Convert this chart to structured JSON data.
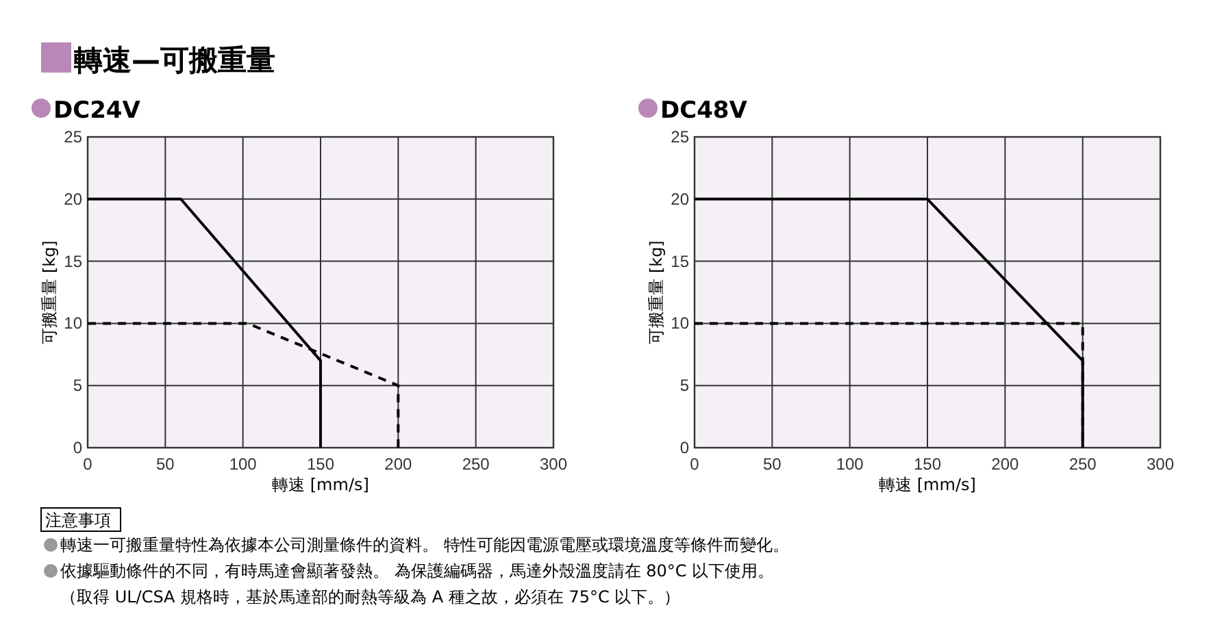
{
  "chart_data": [
    {
      "type": "line",
      "title": "轉速—可搬重量",
      "subtitle": "DC24V",
      "xlabel": "轉速 [mm/s]",
      "ylabel": "可搬重量 [kg]",
      "xlim": [
        0,
        300
      ],
      "xticks": [
        0,
        50,
        100,
        150,
        200,
        250,
        300
      ],
      "ylim": [
        0,
        25
      ],
      "yticks": [
        0,
        5,
        10,
        15,
        20,
        25
      ],
      "grid": true,
      "series": [
        {
          "color": "#000000",
          "line_style": "dashed",
          "x": [
            0,
            103,
            200,
            200
          ],
          "values": [
            10,
            10,
            5,
            0
          ]
        },
        {
          "color": "#000000",
          "line_style": "solid",
          "x": [
            0,
            60,
            150,
            150
          ],
          "values": [
            20,
            20,
            7,
            0
          ]
        }
      ],
      "annotations": [
        "注意事項",
        "轉速一可搬重量特性為依據本公司測量條件的資料。 特性可能因電源電壓或環境溫度等條件而變化。",
        "依據驅動條件的不同，有時馬達會顯著發熱。 為保護編碼器，馬達外殼溫度請在 80°C 以下使用。",
        "（取得 UL/CSA 規格時，基於馬達部的耐熱等級為 A 種之故，必須在 75°C 以下。）"
      ]
    },
    {
      "type": "line",
      "subtitle": "DC48V",
      "xlabel": "轉速 [mm/s]",
      "ylabel": "可搬重量 [kg]",
      "xlim": [
        0,
        300
      ],
      "xticks": [
        0,
        50,
        100,
        150,
        200,
        250,
        300
      ],
      "ylim": [
        0,
        25
      ],
      "yticks": [
        0,
        5,
        10,
        15,
        20,
        25
      ],
      "grid": true,
      "series": [
        {
          "color": "#000000",
          "line_style": "dashed",
          "x": [
            0,
            250,
            250
          ],
          "values": [
            10,
            10,
            0
          ]
        },
        {
          "color": "#000000",
          "line_style": "solid",
          "x": [
            0,
            150,
            250,
            250
          ],
          "values": [
            20,
            20,
            7,
            0
          ]
        }
      ]
    }
  ]
}
